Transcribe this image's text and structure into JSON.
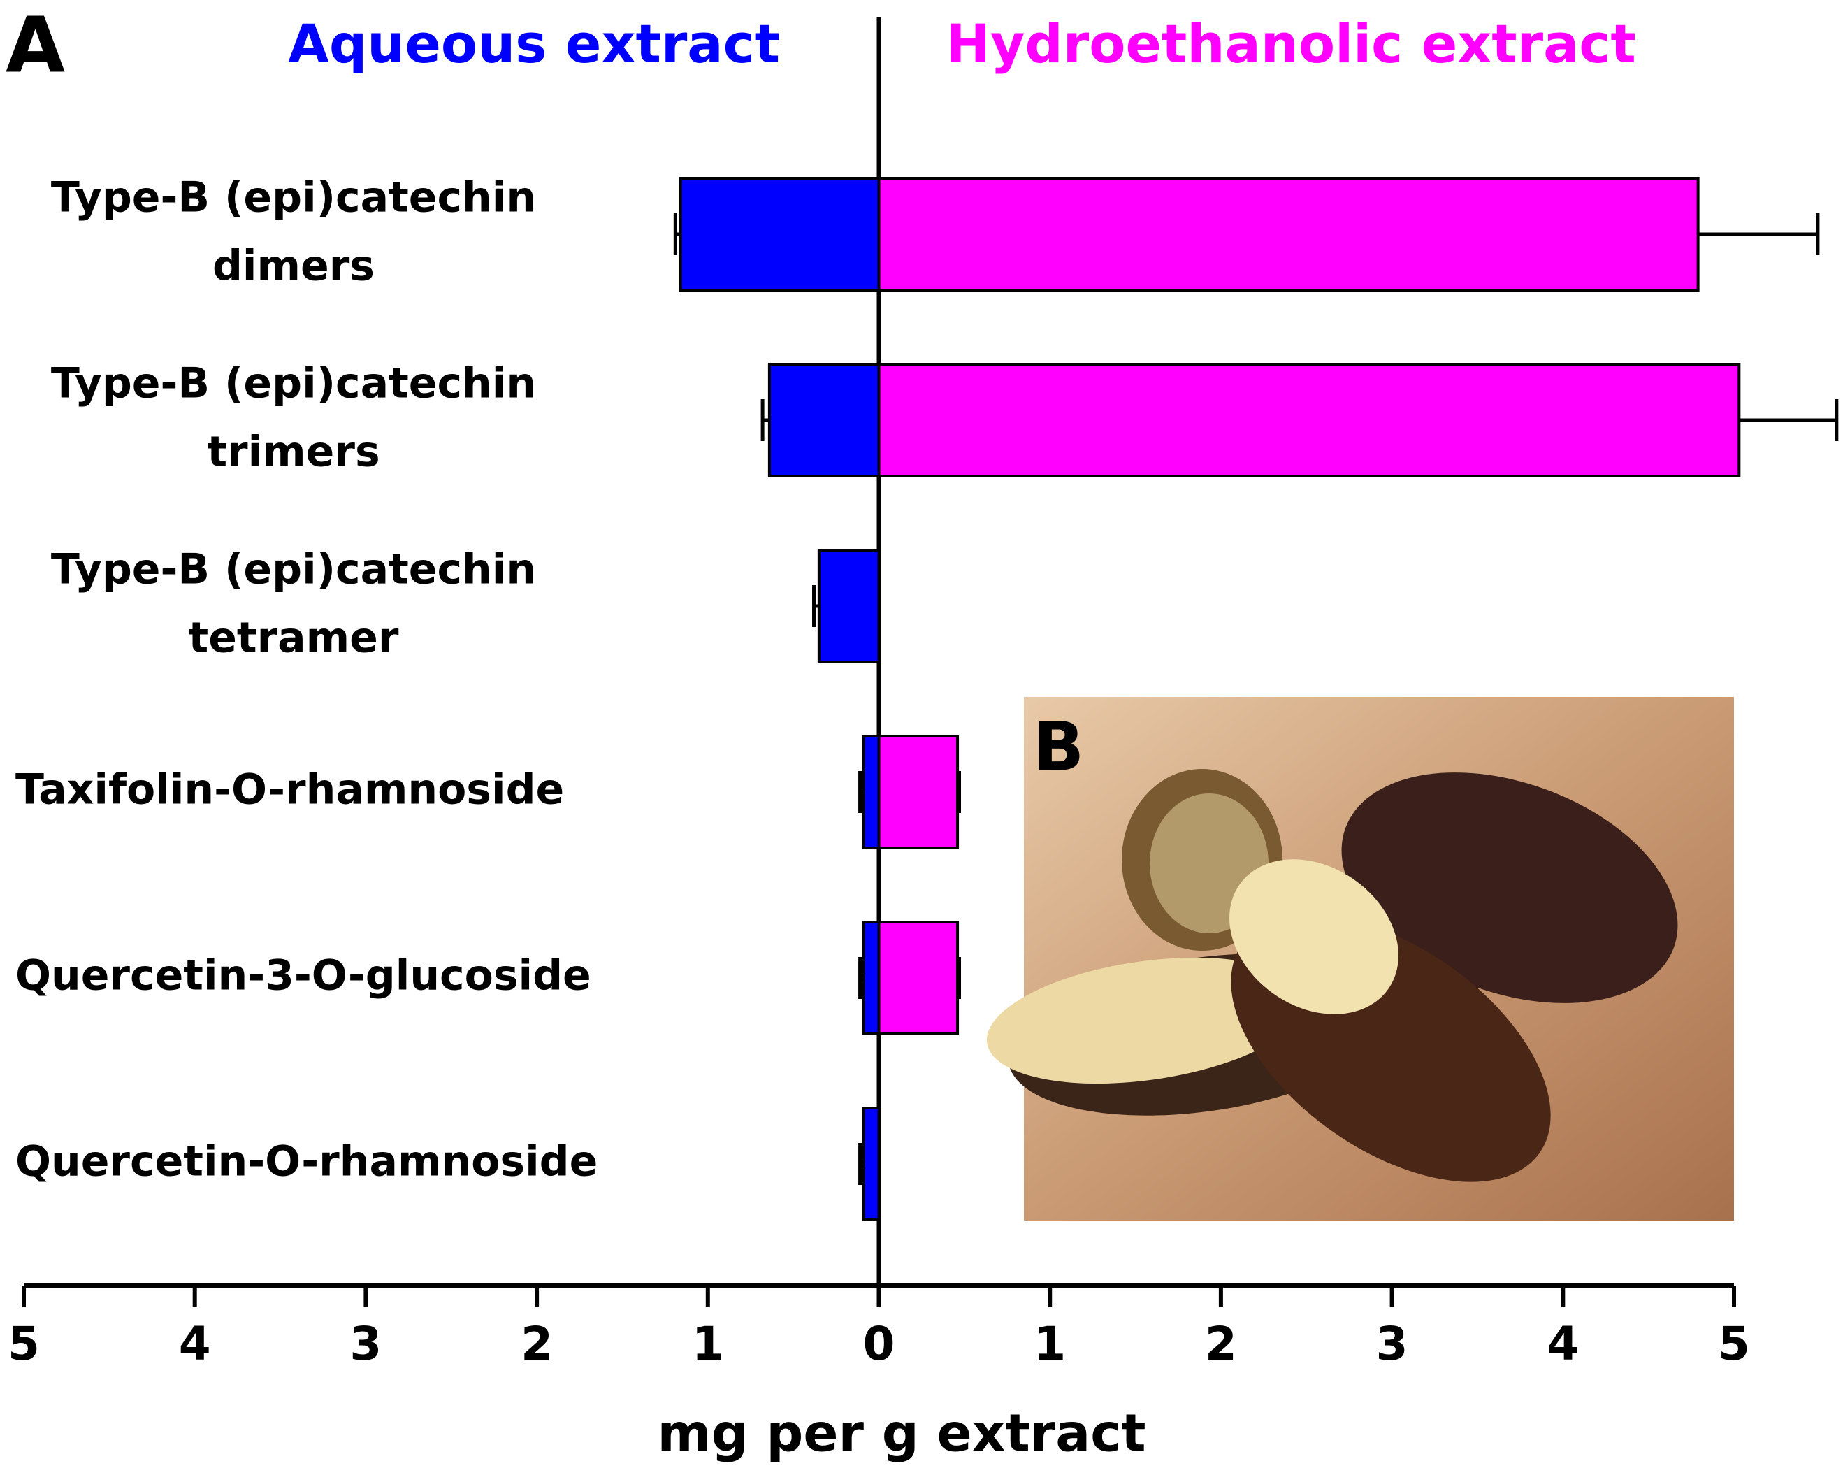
{
  "chart_data": {
    "type": "diverging-bar",
    "panel_label": "A",
    "photo_label": "B",
    "categories": [
      [
        "Type-B (epi)catechin",
        "dimers"
      ],
      [
        "Type-B (epi)catechin",
        "trimers"
      ],
      [
        "Type-B (epi)catechin",
        "tetramer"
      ],
      [
        "Taxifolin-O-rhamnoside"
      ],
      [
        "Quercetin-3-O-glucoside"
      ],
      [
        "Quercetin-O-rhamnoside"
      ]
    ],
    "series": [
      {
        "name": "Aqueous extract",
        "color": "#0000ff",
        "values": [
          -1.16,
          -0.64,
          -0.35,
          -0.09,
          -0.09,
          -0.09
        ],
        "errors": [
          0.03,
          0.04,
          0.03,
          0.02,
          0.02,
          0.02
        ]
      },
      {
        "name": "Hydroethanolic extract",
        "color": "#ff00ff",
        "values": [
          4.79,
          5.03,
          null,
          0.46,
          0.46,
          null
        ],
        "errors": [
          0.7,
          0.57,
          null,
          0.01,
          0.01,
          null
        ]
      }
    ],
    "xlim": [
      -5,
      5
    ],
    "xticks": [
      {
        "value": -5,
        "label": "5"
      },
      {
        "value": -4,
        "label": "4"
      },
      {
        "value": -3,
        "label": "3"
      },
      {
        "value": -2,
        "label": "2"
      },
      {
        "value": -1,
        "label": "1"
      },
      0,
      1,
      2,
      3,
      4,
      5
    ],
    "x_label": "mg per g extract"
  }
}
